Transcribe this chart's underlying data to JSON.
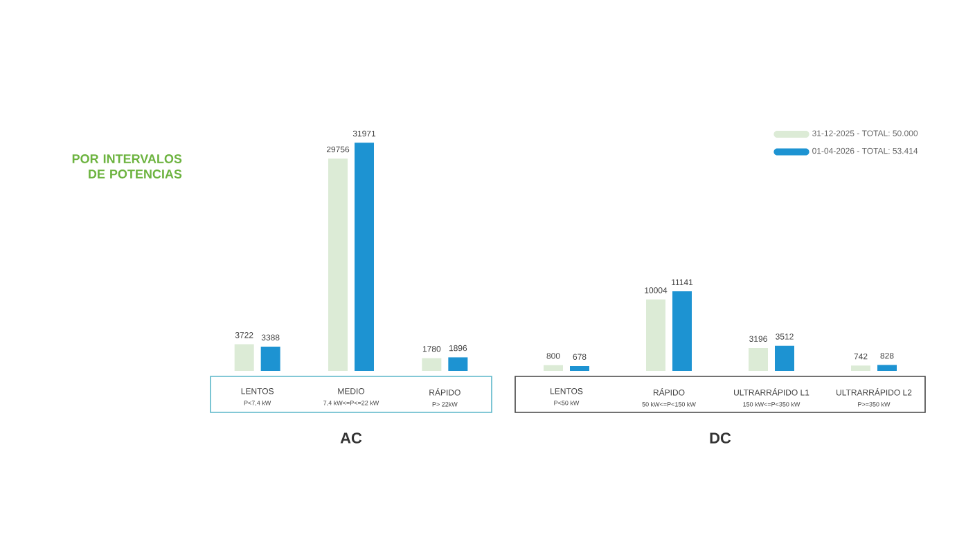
{
  "chart_data": [
    {
      "type": "bar",
      "title": "POR INTERVALOS DE POTENCIAS",
      "xlabel": "AC",
      "categories": [
        "LENTOS",
        "MEDIO",
        "RÁPIDO"
      ],
      "annotations": [
        "P<7,4 kW",
        "7,4 kW<=P<=22 kW",
        "P> 22kW"
      ],
      "data_labels": true,
      "tick_labels": "x",
      "series": [
        {
          "color": "#dcebd6",
          "values": [
            3722,
            29756,
            1780
          ]
        },
        {
          "color": "#1d93d2",
          "values": [
            3388,
            31971,
            1896
          ]
        }
      ]
    },
    {
      "type": "bar",
      "xlabel": "DC",
      "categories": [
        "LENTOS",
        "RÁPIDO",
        "ULTRARRÁPIDO L1",
        "ULTRARRÁPIDO L2"
      ],
      "annotations": [
        "P<50 kW",
        "50 kW<=P<150 kW",
        "150 kW<=P<350 kW",
        "P>=350 kW"
      ],
      "data_labels": true,
      "tick_labels": "x",
      "legend": "top right",
      "series": [
        {
          "name": "31-12-2025 - TOTAL: 50.000",
          "color": "#dcebd6",
          "values": [
            800,
            10004,
            3196,
            742
          ]
        },
        {
          "name": "01-04-2026 - TOTAL: 53.414",
          "color": "#1d93d2",
          "values": [
            678,
            11141,
            3512,
            828
          ]
        }
      ]
    }
  ]
}
